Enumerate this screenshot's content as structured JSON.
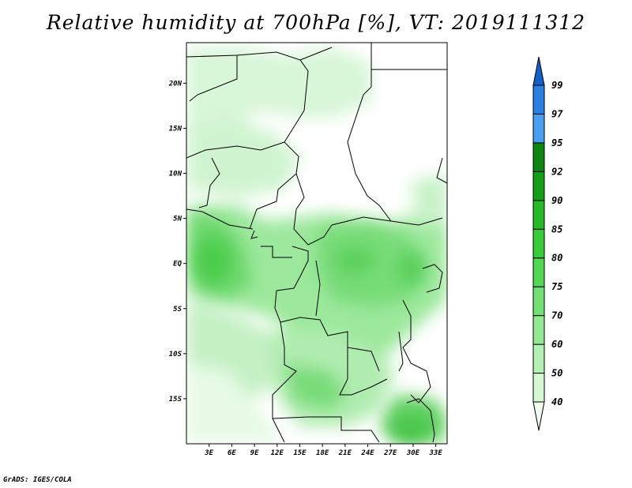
{
  "title": "Relative humidity at 700hPa [%], VT: 2019111312",
  "credit": "GrADS: IGES/COLA",
  "map": {
    "lat_labels": [
      "20N",
      "15N",
      "10N",
      "5N",
      "EQ",
      "5S",
      "10S",
      "15S"
    ],
    "lat_values": [
      20,
      15,
      10,
      5,
      0,
      -5,
      -10,
      -15
    ],
    "lon_labels": [
      "3E",
      "6E",
      "9E",
      "12E",
      "15E",
      "18E",
      "21E",
      "24E",
      "27E",
      "30E",
      "33E"
    ],
    "lon_values": [
      3,
      6,
      9,
      12,
      15,
      18,
      21,
      24,
      27,
      30,
      33
    ],
    "lat_range": [
      -20,
      24.5
    ],
    "lon_range": [
      0,
      34.5
    ]
  },
  "colorbar": {
    "labels": [
      "40",
      "50",
      "60",
      "70",
      "75",
      "80",
      "85",
      "90",
      "92",
      "95",
      "97",
      "99"
    ],
    "colors": [
      "#f0fff0",
      "#d4f7d4",
      "#b4efb4",
      "#94e794",
      "#74df74",
      "#54d754",
      "#3acb3a",
      "#28b828",
      "#169f16",
      "#118511",
      "#4a9ff0",
      "#2a7fe0",
      "#1560c8"
    ]
  }
}
